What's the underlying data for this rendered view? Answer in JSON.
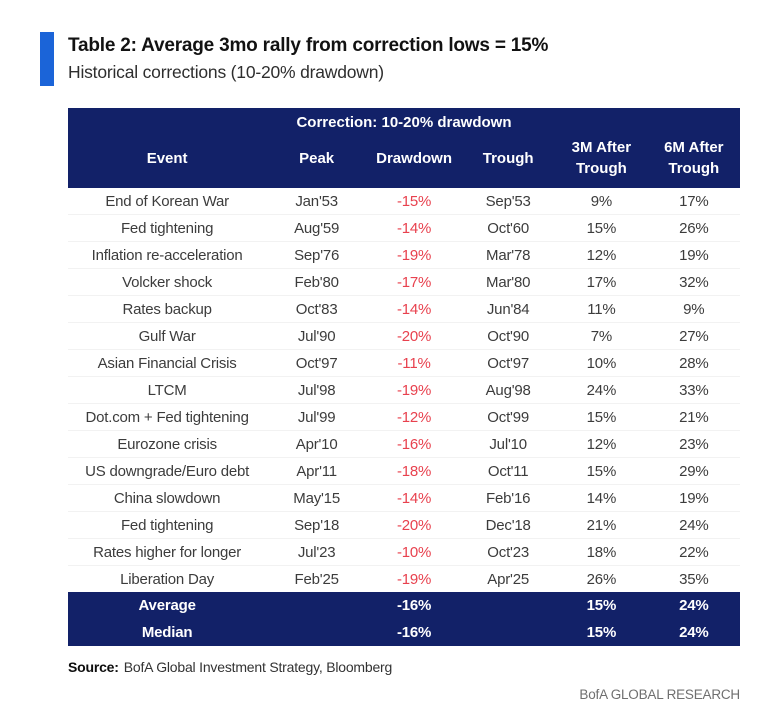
{
  "colors": {
    "navy_header": "#122168",
    "accent_bar_blue": "#1b64d8",
    "drawdown_red": "#e8414e",
    "brand_gray": "#6f6f6f"
  },
  "header": {
    "title": "Table 2: Average 3mo rally from correction lows = 15%",
    "subtitle": "Historical corrections (10-20% drawdown)"
  },
  "table": {
    "span_header": "Correction: 10-20% drawdown",
    "columns": [
      "Event",
      "Peak",
      "Drawdown",
      "Trough",
      "3M After\nTrough",
      "6M After\nTrough"
    ],
    "rows": [
      {
        "event": "End of Korean War",
        "peak": "Jan'53",
        "drawdown": "-15%",
        "trough": "Sep'53",
        "m3": "9%",
        "m6": "17%"
      },
      {
        "event": "Fed tightening",
        "peak": "Aug'59",
        "drawdown": "-14%",
        "trough": "Oct'60",
        "m3": "15%",
        "m6": "26%"
      },
      {
        "event": "Inflation re-acceleration",
        "peak": "Sep'76",
        "drawdown": "-19%",
        "trough": "Mar'78",
        "m3": "12%",
        "m6": "19%"
      },
      {
        "event": "Volcker shock",
        "peak": "Feb'80",
        "drawdown": "-17%",
        "trough": "Mar'80",
        "m3": "17%",
        "m6": "32%"
      },
      {
        "event": "Rates backup",
        "peak": "Oct'83",
        "drawdown": "-14%",
        "trough": "Jun'84",
        "m3": "11%",
        "m6": "9%"
      },
      {
        "event": "Gulf War",
        "peak": "Jul'90",
        "drawdown": "-20%",
        "trough": "Oct'90",
        "m3": "7%",
        "m6": "27%"
      },
      {
        "event": "Asian Financial Crisis",
        "peak": "Oct'97",
        "drawdown": "-11%",
        "trough": "Oct'97",
        "m3": "10%",
        "m6": "28%"
      },
      {
        "event": "LTCM",
        "peak": "Jul'98",
        "drawdown": "-19%",
        "trough": "Aug'98",
        "m3": "24%",
        "m6": "33%"
      },
      {
        "event": "Dot.com + Fed tightening",
        "peak": "Jul'99",
        "drawdown": "-12%",
        "trough": "Oct'99",
        "m3": "15%",
        "m6": "21%"
      },
      {
        "event": "Eurozone crisis",
        "peak": "Apr'10",
        "drawdown": "-16%",
        "trough": "Jul'10",
        "m3": "12%",
        "m6": "23%"
      },
      {
        "event": "US downgrade/Euro debt",
        "peak": "Apr'11",
        "drawdown": "-18%",
        "trough": "Oct'11",
        "m3": "15%",
        "m6": "29%"
      },
      {
        "event": "China slowdown",
        "peak": "May'15",
        "drawdown": "-14%",
        "trough": "Feb'16",
        "m3": "14%",
        "m6": "19%"
      },
      {
        "event": "Fed tightening",
        "peak": "Sep'18",
        "drawdown": "-20%",
        "trough": "Dec'18",
        "m3": "21%",
        "m6": "24%"
      },
      {
        "event": "Rates higher for longer",
        "peak": "Jul'23",
        "drawdown": "-10%",
        "trough": "Oct'23",
        "m3": "18%",
        "m6": "22%"
      },
      {
        "event": "Liberation Day",
        "peak": "Feb'25",
        "drawdown": "-19%",
        "trough": "Apr'25",
        "m3": "26%",
        "m6": "35%"
      }
    ],
    "summary": [
      {
        "label": "Average",
        "peak": "",
        "drawdown": "-16%",
        "trough": "",
        "m3": "15%",
        "m6": "24%"
      },
      {
        "label": "Median",
        "peak": "",
        "drawdown": "-16%",
        "trough": "",
        "m3": "15%",
        "m6": "24%"
      }
    ]
  },
  "footer": {
    "source_label": "Source:",
    "source_text": "BofA Global Investment Strategy, Bloomberg",
    "brand": "BofA GLOBAL RESEARCH"
  }
}
